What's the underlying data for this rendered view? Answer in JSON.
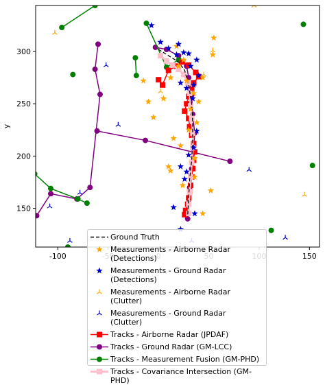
{
  "chart_data": {
    "type": "scatter",
    "ylabel": "y",
    "xlim": [
      -122,
      160
    ],
    "ylim": [
      113,
      344
    ],
    "xticks": [
      -100,
      -50,
      0,
      50,
      100,
      150
    ],
    "yticks": [
      150,
      200,
      250,
      300
    ],
    "legend_placement": "bottom-center",
    "legend": [
      {
        "label": "Ground Truth",
        "color": "#000000",
        "marker": "none",
        "line": "dashed"
      },
      {
        "label": "Measurements - Airborne Radar\n(Detections)",
        "color": "#ffa500",
        "marker": "star",
        "line": "none"
      },
      {
        "label": "Measurements - Ground Radar\n(Detections)",
        "color": "#0000cd",
        "marker": "star",
        "line": "none"
      },
      {
        "label": "Measurements - Airborne Radar\n(Clutter)",
        "color": "#ffa500",
        "marker": "tri",
        "line": "none"
      },
      {
        "label": "Measurements - Ground Radar\n(Clutter)",
        "color": "#0000cd",
        "marker": "tri",
        "line": "none"
      },
      {
        "label": "Tracks - Airborne Radar (JPDAF)",
        "color": "#ff0000",
        "marker": "square",
        "line": "solid"
      },
      {
        "label": "Tracks - Ground Radar (GM-LCC)",
        "color": "#800080",
        "marker": "circle",
        "line": "solid"
      },
      {
        "label": "Tracks - Measurement Fusion (GM-PHD)",
        "color": "#008000",
        "marker": "circle",
        "line": "solid"
      },
      {
        "label": "Tracks - Covariance Intersection (GM-PHD)",
        "color": "#ffc0cb",
        "marker": "square",
        "line": "solid"
      }
    ],
    "series": [
      {
        "name": "Ground Truth",
        "color": "#000000",
        "x": [
          0,
          10,
          20,
          26,
          30,
          33,
          34,
          34,
          33,
          31,
          30,
          29
        ],
        "y": [
          302,
          296,
          290,
          282,
          268,
          250,
          232,
          214,
          196,
          178,
          160,
          142
        ]
      },
      {
        "name": "Measurements - Airborne Radar\n(Detections)",
        "color": "#ffa500",
        "x": [
          -5,
          5,
          12,
          20,
          28,
          35,
          40,
          18,
          25,
          32,
          38,
          15,
          22,
          30,
          36,
          44,
          55,
          54,
          10,
          36,
          24,
          52,
          44,
          -15,
          12,
          -10
        ],
        "y": [
          237,
          255,
          275,
          286,
          272,
          260,
          252,
          305,
          292,
          245,
          232,
          217,
          210,
          225,
          198,
          275,
          313,
          297,
          190,
          180,
          172,
          167,
          145,
          272,
          186,
          252
        ]
      },
      {
        "name": "Measurements - Ground Radar\n(Detections)",
        "color": "#0000cd",
        "x": [
          -7,
          2,
          10,
          20,
          25,
          30,
          38,
          22,
          32,
          28,
          40,
          34,
          38,
          22,
          26,
          30,
          15,
          36,
          28,
          35,
          22,
          35,
          18
        ],
        "y": [
          325,
          309,
          303,
          307,
          299,
          298,
          292,
          270,
          286,
          265,
          277,
          255,
          224,
          190,
          178,
          201,
          151,
          145,
          185,
          208,
          130,
          268,
          297
        ]
      },
      {
        "name": "Measurements - Airborne Radar\n(Clutter)",
        "color": "#ffa500",
        "x": [
          -103,
          95,
          145,
          2,
          45,
          54
        ],
        "y": [
          318,
          344,
          163,
          262,
          278,
          301
        ]
      },
      {
        "name": "Measurements - Ground Radar\n(Clutter)",
        "color": "#0000cd",
        "x": [
          -108,
          -78,
          -52,
          -40,
          90,
          126,
          -88,
          33
        ],
        "y": [
          152,
          165,
          287,
          230,
          187,
          122,
          119,
          119
        ]
      },
      {
        "name": "Tracks - Airborne Radar (JPDAF)",
        "color": "#ff0000",
        "x": [
          0,
          4,
          10,
          18,
          24,
          30,
          37,
          40,
          35,
          33,
          30,
          28,
          26,
          30,
          31,
          33,
          35,
          36,
          35,
          34,
          33,
          32,
          31,
          30,
          29,
          27,
          26
        ],
        "y": [
          273,
          268,
          282,
          286,
          290,
          287,
          280,
          276,
          270,
          264,
          257,
          250,
          243,
          236,
          228,
          220,
          212,
          204,
          196,
          188,
          180,
          172,
          166,
          160,
          154,
          148,
          144
        ]
      },
      {
        "name": "Tracks - Ground Radar (GM-LCC)",
        "color": "#800080",
        "x": [
          -60,
          -63,
          -58,
          -68,
          -81,
          -107,
          -121,
          -61,
          -13,
          71,
          -3,
          8,
          20,
          28,
          30,
          33,
          34,
          36,
          35,
          33,
          31,
          30,
          29
        ],
        "y": [
          307,
          283,
          259,
          170,
          159,
          164,
          143,
          224,
          215,
          195,
          304,
          302,
          296,
          286,
          275,
          258,
          240,
          222,
          205,
          188,
          170,
          155,
          140
        ]
      },
      {
        "name": "Tracks - Measurement Fusion (GM-PHD)",
        "color": "#008000",
        "x": [
          -63,
          -96,
          -123,
          -107,
          -80,
          -71,
          -23,
          -22,
          -12,
          8,
          20,
          144,
          153,
          -85,
          -90,
          112
        ],
        "y": [
          344,
          323,
          183,
          169,
          159,
          155,
          294,
          277,
          327,
          285,
          292,
          326,
          191,
          278,
          113,
          129
        ]
      },
      {
        "name": "Tracks - Covariance Intersection (GM-PHD)",
        "color": "#ffc0cb",
        "x": [
          2,
          8,
          14,
          20,
          25,
          29,
          31,
          32,
          33,
          34,
          34,
          33,
          32,
          31,
          30,
          30
        ],
        "y": [
          296,
          291,
          287,
          283,
          278,
          270,
          260,
          248,
          236,
          222,
          208,
          194,
          180,
          166,
          154,
          145
        ]
      }
    ]
  }
}
